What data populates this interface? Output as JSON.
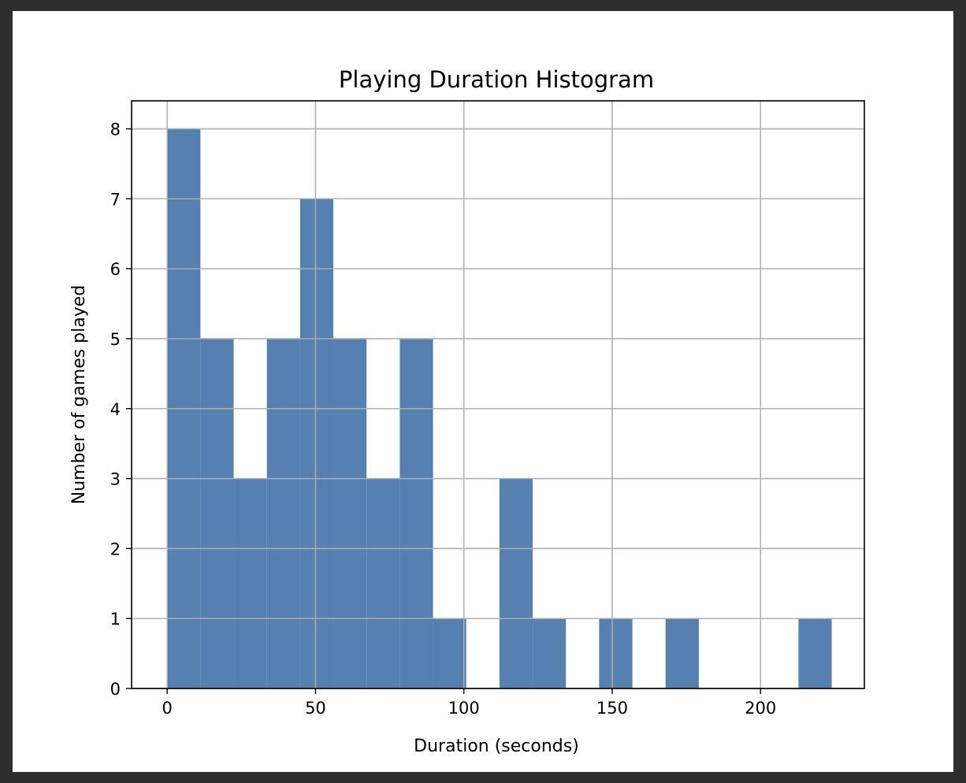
{
  "chart_data": {
    "type": "bar",
    "title": "Playing Duration Histogram",
    "xlabel": "Duration (seconds)",
    "ylabel": "Number of games played",
    "bins": 20,
    "bin_range": [
      0,
      224
    ],
    "counts": [
      8,
      5,
      3,
      5,
      7,
      5,
      3,
      5,
      1,
      0,
      3,
      1,
      0,
      1,
      0,
      1,
      0,
      0,
      0,
      1
    ],
    "xlim": [
      -12,
      235
    ],
    "ylim": [
      0,
      8.4
    ],
    "xticks": [
      0,
      50,
      100,
      150,
      200
    ],
    "xtick_labels": [
      "0",
      "50",
      "100",
      "150",
      "200"
    ],
    "yticks": [
      0,
      1,
      2,
      3,
      4,
      5,
      6,
      7,
      8
    ],
    "ytick_labels": [
      "0",
      "1",
      "2",
      "3",
      "4",
      "5",
      "6",
      "7",
      "8"
    ],
    "grid": true,
    "bar_color": "#5580b0",
    "grid_color": "#b0b0b0"
  }
}
